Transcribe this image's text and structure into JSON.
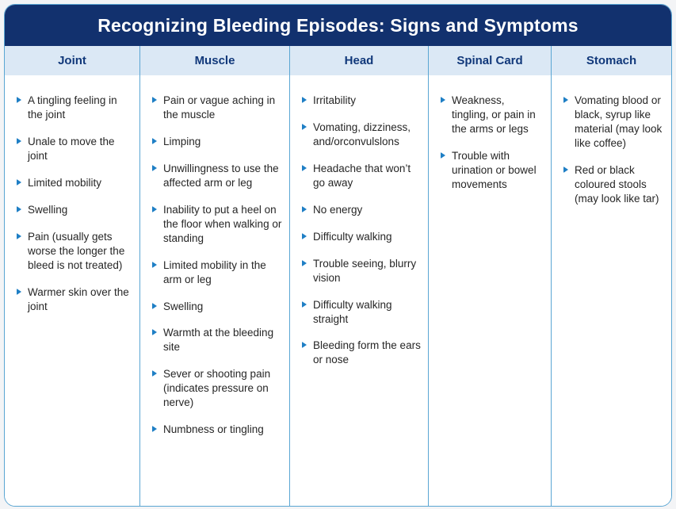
{
  "title": "Recognizing Bleeding Episodes: Signs and Symptoms",
  "colors": {
    "title_bg": "#12316e",
    "title_text": "#ffffff",
    "header_bg": "#dbe8f5",
    "header_text": "#11387a",
    "divider": "#5aa6d3",
    "bullet": "#1f7fc5",
    "body_text": "#262626",
    "card_bg": "#ffffff",
    "page_bg": "#f3f4f6"
  },
  "columns": [
    {
      "label": "Joint",
      "items": [
        "A tingling feeling in the joint",
        "Unale to move the joint",
        "Limited mobility",
        "Swelling",
        "Pain (usually gets worse the longer the bleed is not treated)",
        "Warmer skin over the joint"
      ]
    },
    {
      "label": "Muscle",
      "items": [
        "Pain or vague aching in the muscle",
        "Limping",
        "Unwillingness to use the affected arm or leg",
        "Inability to put a heel on the floor when walking or standing",
        "Limited mobility in the arm or leg",
        "Swelling",
        "Warmth at the bleeding site",
        "Sever or shooting pain (indicates pressure on nerve)",
        "Numbness or tingling"
      ]
    },
    {
      "label": "Head",
      "items": [
        "Irritability",
        "Vomating, dizziness, and/orconvulslons",
        "Headache that won’t go away",
        "No energy",
        "Difficulty walking",
        "Trouble seeing, blurry vision",
        "Difficulty walking straight",
        "Bleeding form the ears or nose"
      ]
    },
    {
      "label": "Spinal Card",
      "items": [
        "Weakness, tingling, or pain in the arms or legs",
        "Trouble with urination or bowel movements"
      ]
    },
    {
      "label": "Stomach",
      "items": [
        "Vomating blood or black, syrup like material (may look like coffee)",
        "Red or black coloured stools (may look like tar)"
      ]
    }
  ]
}
